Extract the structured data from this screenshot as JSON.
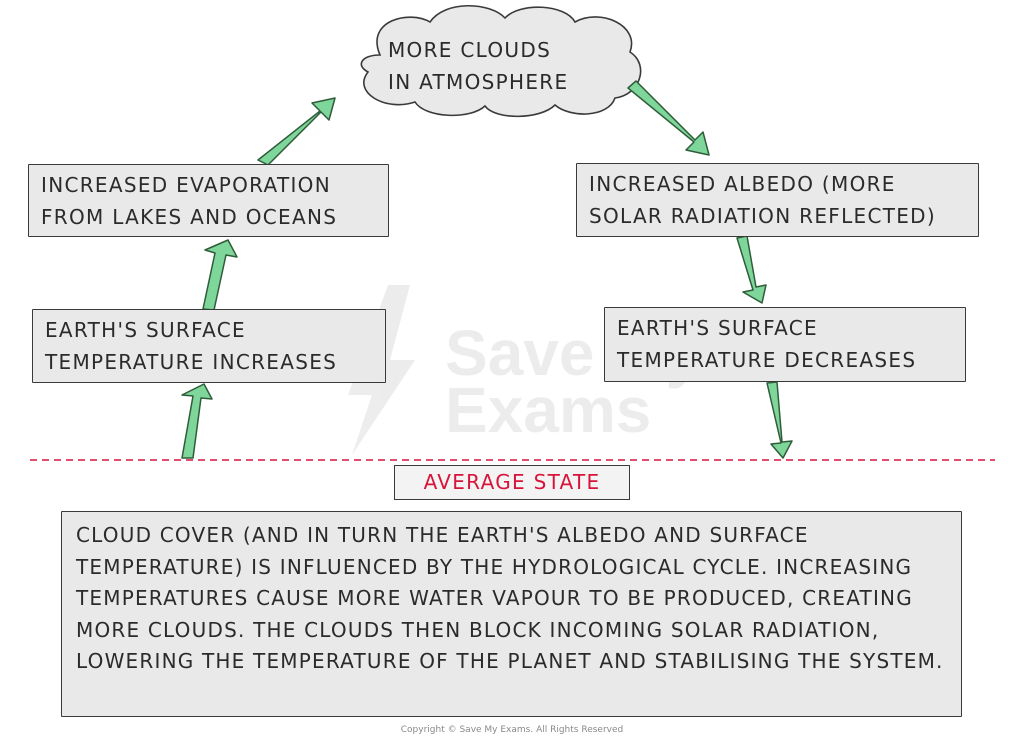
{
  "cloud": {
    "line1": "MORE CLOUDS",
    "line2": "IN ATMOSPHERE"
  },
  "evaporation": {
    "line1": "INCREASED EVAPORATION",
    "line2": "FROM LAKES AND OCEANS"
  },
  "albedo": {
    "line1": "INCREASED ALBEDO (MORE",
    "line2": "SOLAR RADIATION REFLECTED)"
  },
  "temp_increase": {
    "line1": "EARTH'S SURFACE",
    "line2": "TEMPERATURE INCREASES"
  },
  "temp_decrease": {
    "line1": "EARTH'S SURFACE",
    "line2": "TEMPERATURE DECREASES"
  },
  "average_state": "AVERAGE STATE",
  "explanation": "CLOUD COVER (AND IN TURN THE EARTH'S ALBEDO AND SURFACE TEMPERATURE) IS INFLUENCED BY THE HYDROLOGICAL CYCLE. INCREASING TEMPERATURES CAUSE MORE WATER VAPOUR TO BE PRODUCED, CREATING MORE CLOUDS. THE CLOUDS THEN BLOCK INCOMING SOLAR RADIATION, LOWERING THE TEMPERATURE OF THE PLANET AND STABILISING THE SYSTEM.",
  "watermark": {
    "line1": "Save My",
    "line2": "Exams"
  },
  "copyright": "Copyright © Save My Exams. All Rights Reserved",
  "colors": {
    "arrow_fill": "#7ed69a",
    "box_fill": "#e9e9e9",
    "dashed_line": "#d8143a",
    "average_state_text": "#d8143a"
  }
}
